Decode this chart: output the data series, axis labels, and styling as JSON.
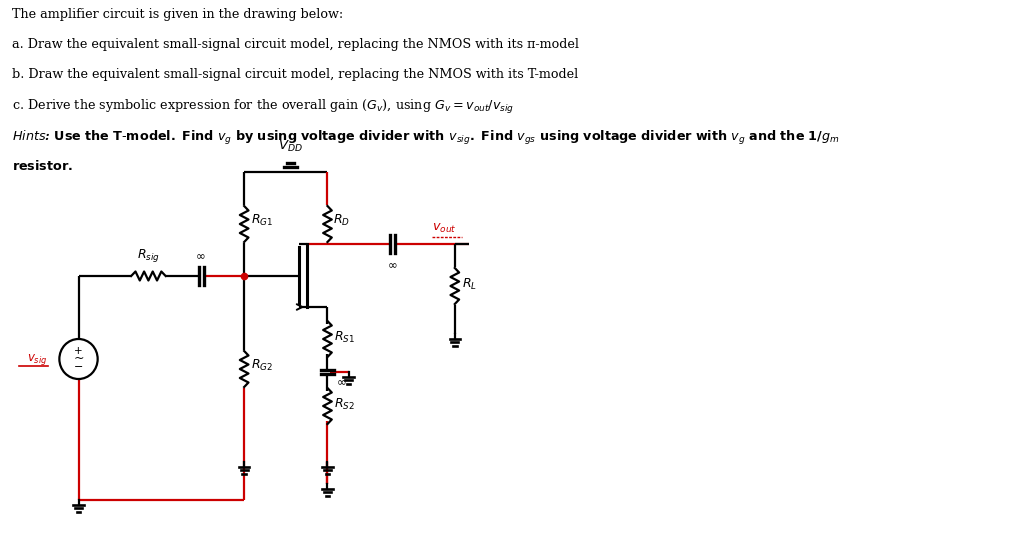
{
  "bg_color": "#ffffff",
  "text_color": "#000000",
  "red_color": "#cc0000",
  "lw": 1.6,
  "fig_w": 10.24,
  "fig_h": 5.44,
  "xlim": [
    0,
    10.24
  ],
  "ylim": [
    0,
    5.44
  ]
}
